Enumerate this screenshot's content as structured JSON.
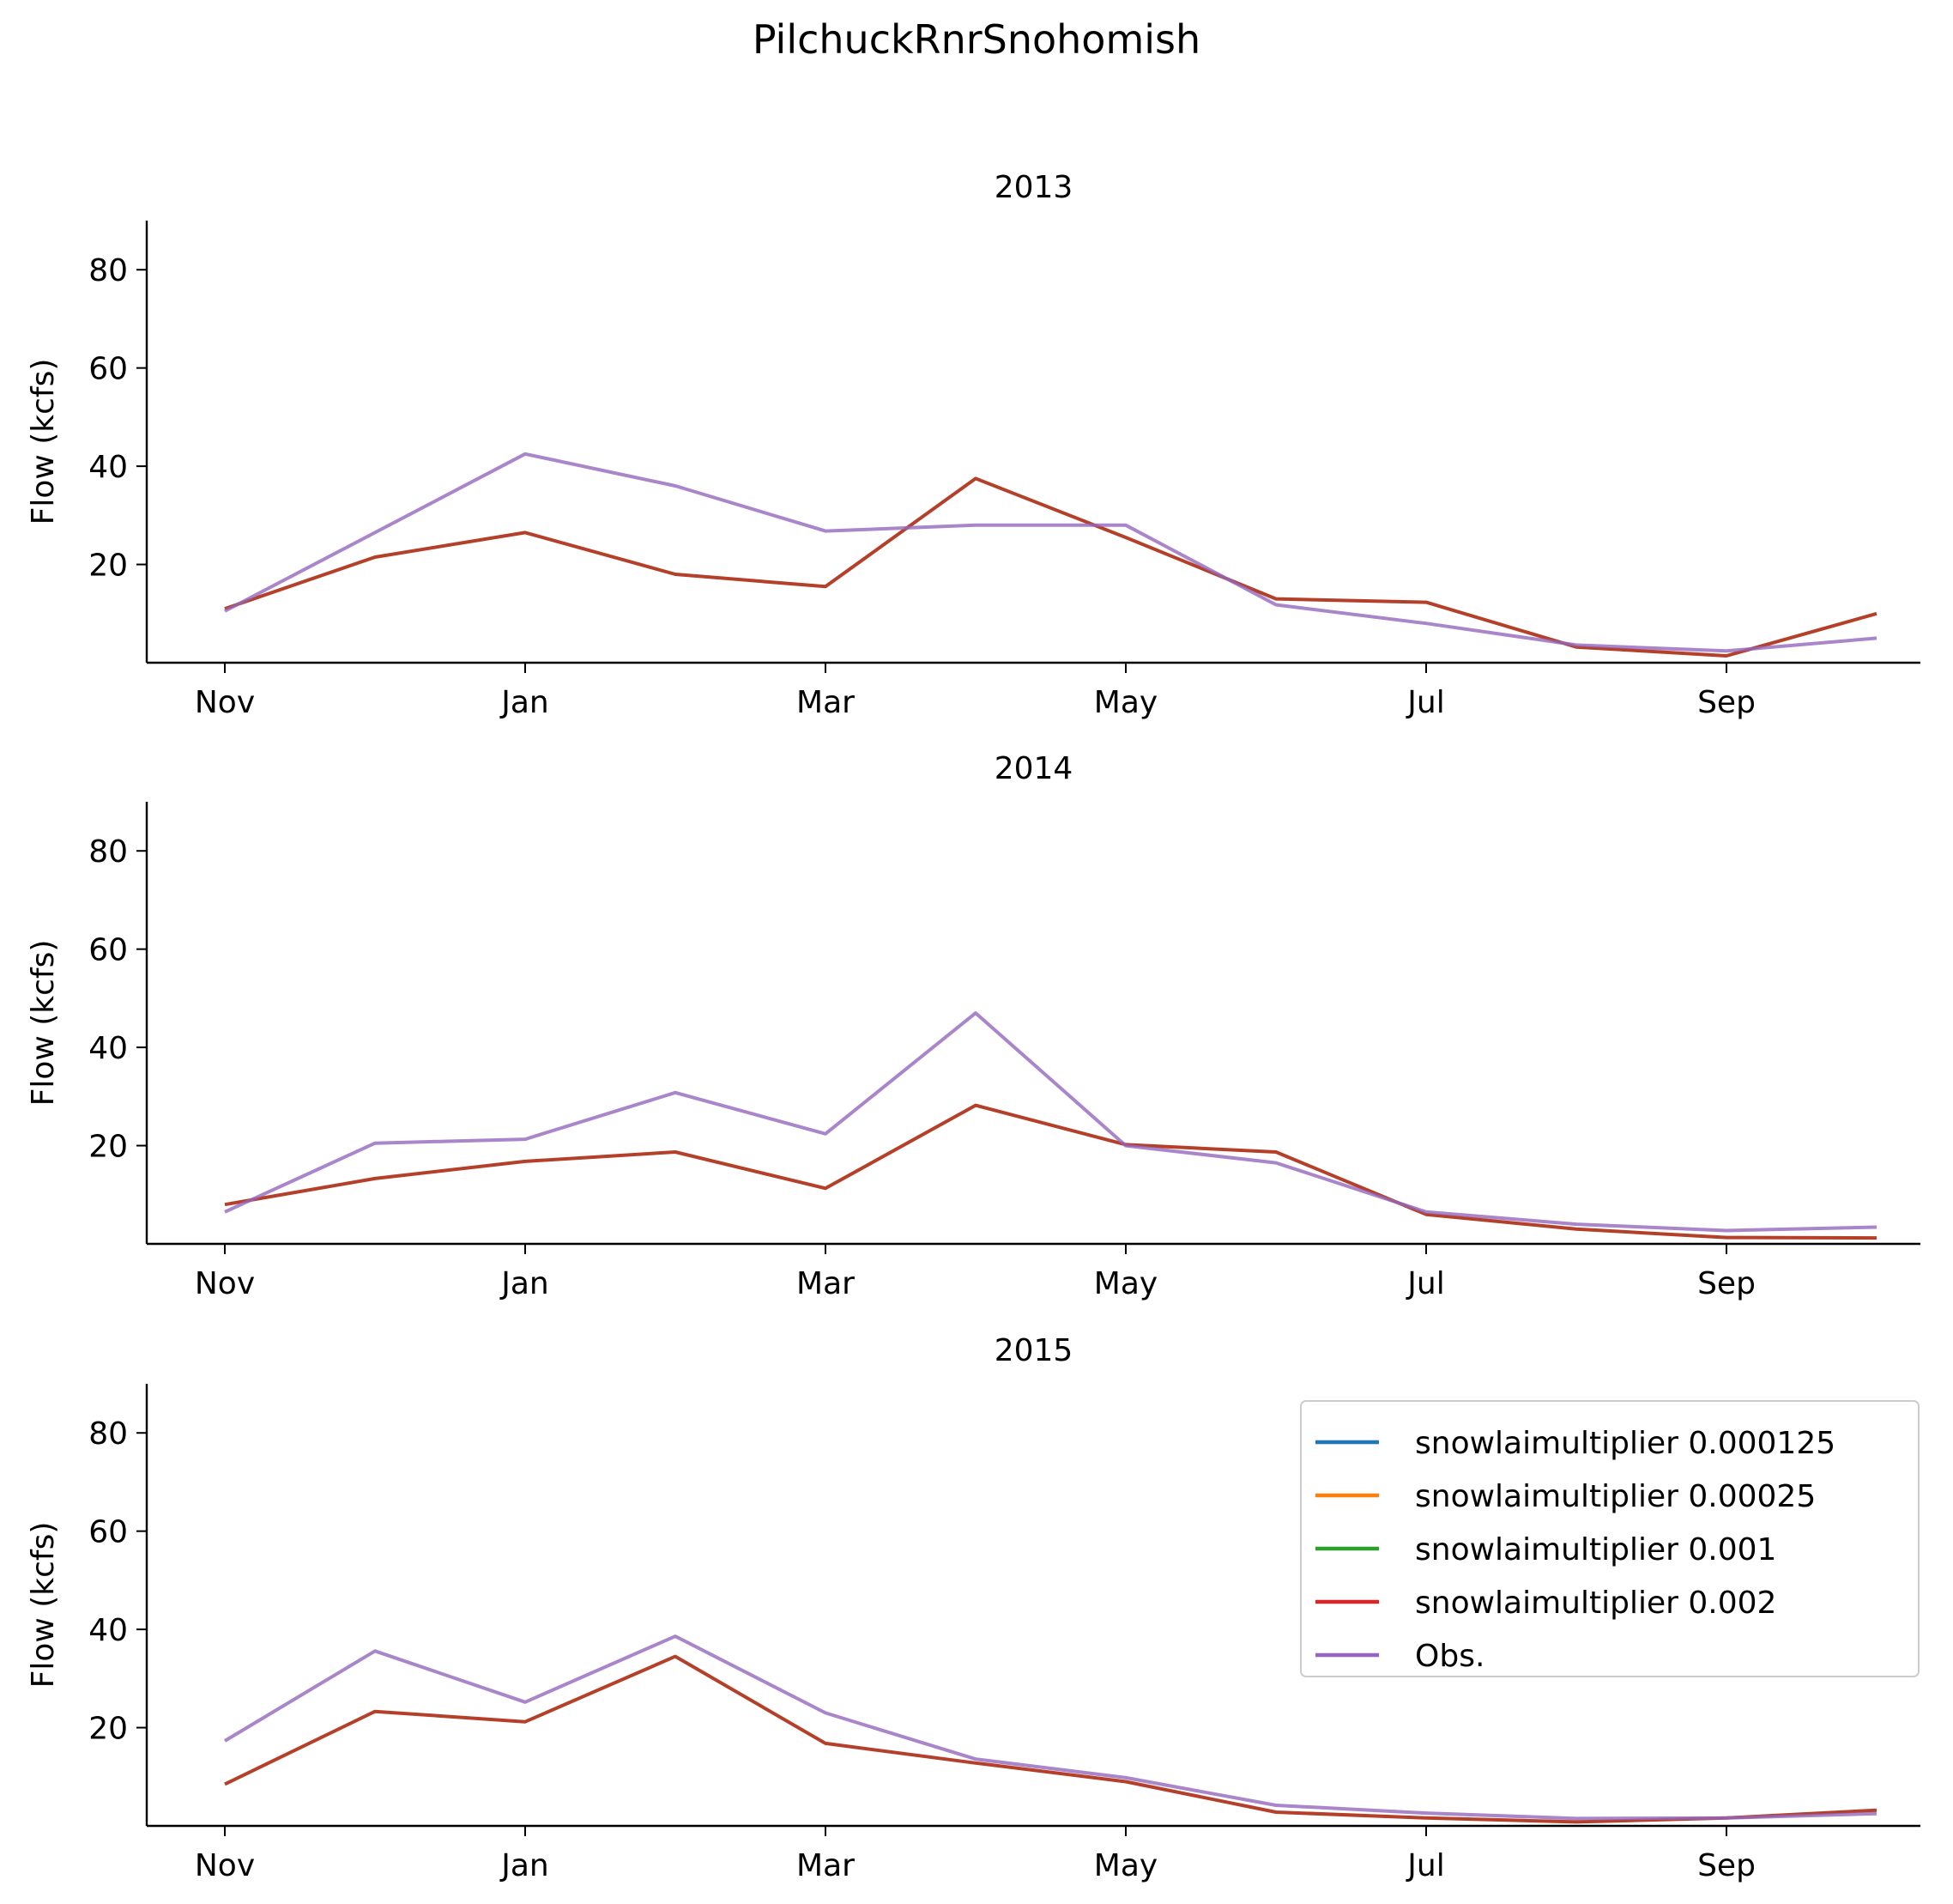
{
  "suptitle": "PilchuckRnrSnohomish",
  "chart_data": {
    "type": "line",
    "shared": {
      "ylabel": "Flow (kcfs)",
      "ylim": [
        0,
        90
      ],
      "yticks": [
        20,
        40,
        60,
        80
      ],
      "x_unit": "month",
      "xticks": [
        "Nov",
        "Jan",
        "Mar",
        "May",
        "Jul",
        "Sep"
      ],
      "x": [
        "Oct 31",
        "Nov 30",
        "Dec 31",
        "Jan 31",
        "Feb 28",
        "Mar 31",
        "Apr 30",
        "May 31",
        "Jun 30",
        "Jul 31",
        "Aug 31",
        "Sep 30"
      ],
      "legend_position": "upper right",
      "grid": false
    },
    "series_styles": [
      {
        "name": "snowlaimultiplier 0.000125",
        "color": "#1f77b4"
      },
      {
        "name": "snowlaimultiplier 0.00025",
        "color": "#ff7f0e"
      },
      {
        "name": "snowlaimultiplier 0.001",
        "color": "#2ca02c"
      },
      {
        "name": "snowlaimultiplier 0.002",
        "color": "#d62728"
      },
      {
        "name": "Obs.",
        "color": "#9467bd"
      }
    ],
    "panels": [
      {
        "title": "2013",
        "sim": [
          11.0,
          21.5,
          26.5,
          18.0,
          15.5,
          37.5,
          25.5,
          13.0,
          12.3,
          3.2,
          1.4,
          10.0
        ],
        "obs": [
          10.5,
          26.5,
          42.5,
          36.0,
          26.8,
          28.0,
          28.0,
          11.8,
          8.0,
          3.6,
          2.4,
          5.0
        ]
      },
      {
        "title": "2014",
        "sim": [
          8.0,
          13.3,
          16.8,
          18.7,
          11.3,
          28.2,
          20.2,
          18.7,
          6.0,
          3.0,
          1.3,
          1.2
        ],
        "obs": [
          6.5,
          20.5,
          21.3,
          30.8,
          22.4,
          47.0,
          20.0,
          16.5,
          6.5,
          4.0,
          2.7,
          3.4
        ]
      },
      {
        "title": "2015",
        "sim": [
          8.5,
          23.3,
          21.2,
          34.5,
          16.8,
          12.8,
          9.0,
          2.8,
          1.6,
          0.8,
          1.6,
          3.2
        ],
        "obs": [
          17.3,
          35.6,
          25.2,
          38.6,
          23.0,
          13.6,
          9.8,
          4.2,
          2.6,
          1.5,
          1.6,
          2.5
        ],
        "show_legend": true
      }
    ],
    "legend": [
      "snowlaimultiplier 0.000125",
      "snowlaimultiplier 0.00025",
      "snowlaimultiplier 0.001",
      "snowlaimultiplier 0.002",
      "Obs."
    ]
  }
}
